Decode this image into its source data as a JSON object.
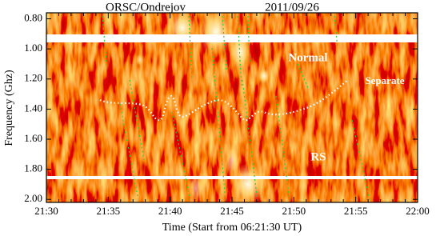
{
  "chart_data": {
    "type": "spectrogram",
    "title": "ORSC/Ondrejov",
    "subtitle": "2011/09/26",
    "x_label": "Time (Start from 06:21:30 UT)",
    "y_label": "Frequency (Ghz)",
    "xticks": [
      "21:30",
      "21:35",
      "21:40",
      "21:45",
      "21:50",
      "21:55",
      "22:00"
    ],
    "ylim": [
      0.76,
      2.02
    ],
    "yticks": [
      {
        "value": 0.8,
        "label": "0.80"
      },
      {
        "value": 1.0,
        "label": "1.00"
      },
      {
        "value": 1.2,
        "label": "1.20"
      },
      {
        "value": 1.4,
        "label": "1.40"
      },
      {
        "value": 1.6,
        "label": "1.60"
      },
      {
        "value": 1.8,
        "label": "1.80"
      },
      {
        "value": 2.0,
        "label": "2.00"
      }
    ],
    "y_inverted": true,
    "annotations": [
      "Normal",
      "Separate",
      "RS"
    ]
  }
}
